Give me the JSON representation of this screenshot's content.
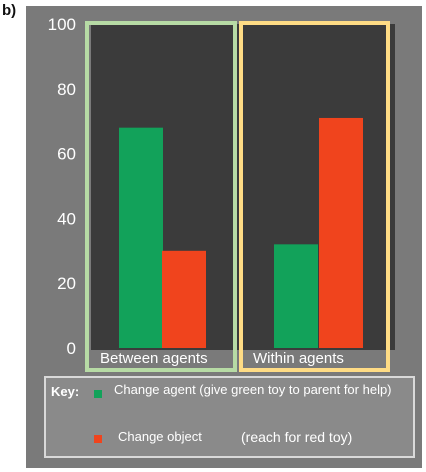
{
  "panel_label": "b)",
  "key": {
    "title": "Key:",
    "items": [
      {
        "label": "Change agent (give green toy to parent for help)",
        "color": "#12a25a"
      },
      {
        "label": "Change object",
        "color": "#f0441d"
      }
    ],
    "note": "(reach for red toy)"
  },
  "colors": {
    "plot_bg": "#3b3b3b",
    "figure_bg": "#7a7a7a",
    "box_between": "#b7dba5",
    "box_within": "#ffdc85"
  },
  "chart_data": {
    "type": "bar",
    "categories": [
      "Between agents",
      "Within agents"
    ],
    "series": [
      {
        "name": "Change agent",
        "values": [
          68,
          32
        ]
      },
      {
        "name": "Change object",
        "values": [
          30,
          71
        ]
      }
    ],
    "yticks": [
      0,
      20,
      40,
      60,
      80,
      100
    ],
    "ylim": [
      0,
      100
    ],
    "title": "",
    "xlabel": "",
    "ylabel": ""
  }
}
